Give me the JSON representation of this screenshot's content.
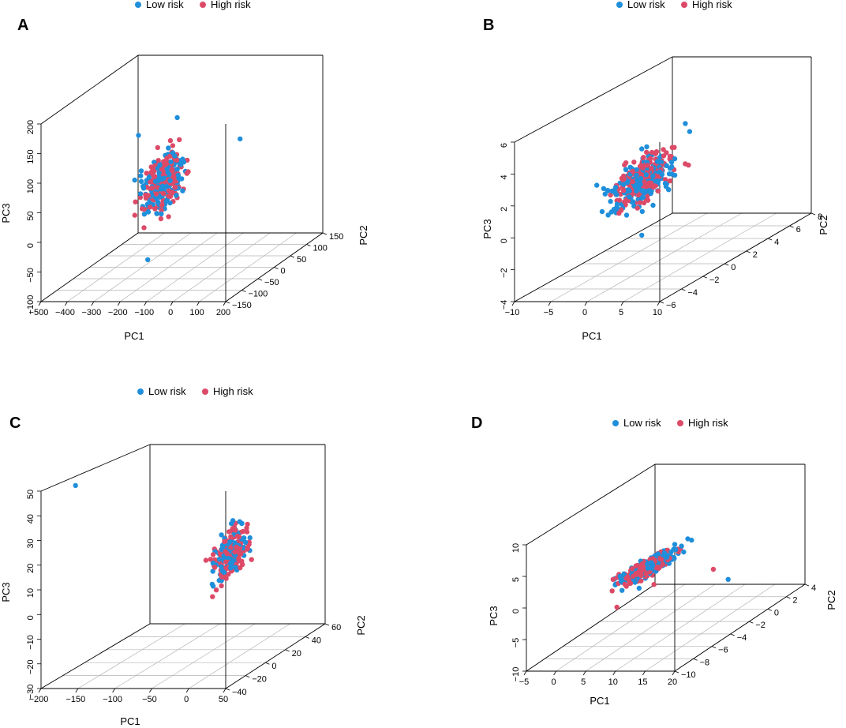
{
  "figure": {
    "legend_low": "Low risk",
    "legend_high": "High risk"
  },
  "colors": {
    "low": "#1f8fdb",
    "high": "#dd4a68",
    "box": "#000000",
    "grid": "#b4b4b4"
  },
  "chart_data": [
    {
      "panel": "A",
      "type": "scatter",
      "xlabel": "PC1",
      "ylabel": "PC2",
      "zlabel": "PC3",
      "x_ticks": [
        "−500",
        "−400",
        "−300",
        "−200",
        "−100",
        "0",
        "100",
        "200"
      ],
      "y_ticks": [
        "−150",
        "−100",
        "−50",
        "0",
        "50",
        "100",
        "150"
      ],
      "z_ticks": [
        "−100",
        "−50",
        "0",
        "50",
        "100",
        "150",
        "200"
      ],
      "series": [
        {
          "name": "Low risk",
          "center_pc1": 30,
          "center_pc3": 60
        },
        {
          "name": "High risk",
          "center_pc1": 40,
          "center_pc3": 60
        }
      ],
      "outliers": [
        {
          "series": "Low risk",
          "pc1": -230,
          "pc3": 130
        },
        {
          "series": "Low risk",
          "pc1": -60,
          "pc3": 180
        },
        {
          "series": "Low risk",
          "pc1": -120,
          "pc3": -80
        }
      ]
    },
    {
      "panel": "B",
      "type": "scatter",
      "xlabel": "PC1",
      "ylabel": "PC2",
      "zlabel": "PC3",
      "x_ticks": [
        "−10",
        "−5",
        "0",
        "5",
        "10"
      ],
      "y_ticks": [
        "−6",
        "−4",
        "−2",
        "0",
        "2",
        "4",
        "6",
        "8"
      ],
      "z_ticks": [
        "−4",
        "−2",
        "0",
        "2",
        "4",
        "6"
      ],
      "series": [
        {
          "name": "Low risk",
          "center_pc1": 3,
          "center_pc3": 2.5
        },
        {
          "name": "High risk",
          "center_pc1": 3,
          "center_pc3": 2
        }
      ]
    },
    {
      "panel": "C",
      "type": "scatter",
      "xlabel": "PC1",
      "ylabel": "PC2",
      "zlabel": "PC3",
      "x_ticks": [
        "−200",
        "−150",
        "−100",
        "−50",
        "0",
        "50"
      ],
      "y_ticks": [
        "−40",
        "−20",
        "0",
        "20",
        "40",
        "60"
      ],
      "z_ticks": [
        "−30",
        "−20",
        "−10",
        "0",
        "10",
        "20",
        "30",
        "40",
        "50"
      ],
      "series": [
        {
          "name": "Low risk",
          "center_pc1": 20,
          "center_pc3": 5
        },
        {
          "name": "High risk",
          "center_pc1": 20,
          "center_pc3": 4
        }
      ],
      "outliers": [
        {
          "series": "Low risk",
          "pc1": -195,
          "pc3": 47
        }
      ]
    },
    {
      "panel": "D",
      "type": "scatter",
      "xlabel": "PC1",
      "ylabel": "PC2",
      "zlabel": "PC3",
      "x_ticks": [
        "−5",
        "0",
        "5",
        "10",
        "15",
        "20"
      ],
      "y_ticks": [
        "−10",
        "−8",
        "−6",
        "−4",
        "−2",
        "0",
        "2",
        "4"
      ],
      "z_ticks": [
        "−10",
        "−5",
        "0",
        "5",
        "10"
      ],
      "series": [
        {
          "name": "Low risk",
          "center_pc1": 12,
          "center_pc3": 8
        },
        {
          "name": "High risk",
          "center_pc1": 15,
          "center_pc3": 9
        }
      ]
    }
  ]
}
